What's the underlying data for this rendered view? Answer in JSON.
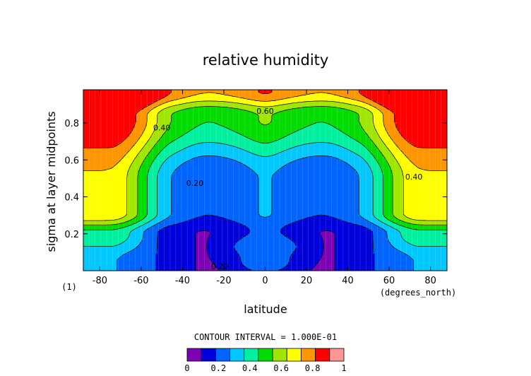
{
  "chart_data": {
    "type": "contour",
    "title": "relative humidity",
    "xlabel": "latitude",
    "x_units": "(degrees_north)",
    "ylabel": "sigma at layer midpoints",
    "panel_label": "(1)",
    "xlim": [
      -88,
      88
    ],
    "ylim": [
      0.0,
      0.98
    ],
    "x_ticks": [
      -80,
      -60,
      -40,
      -20,
      0,
      20,
      40,
      60,
      80
    ],
    "y_ticks": [
      0.2,
      0.4,
      0.6,
      0.8
    ],
    "y_tick_labels": [
      "0.2",
      "0.4",
      "0.6",
      "0.8"
    ],
    "contour_interval_text": "CONTOUR INTERVAL = 1.000E-01",
    "contour_labels": [
      {
        "text": "0.60",
        "x": 0,
        "y": 0.865
      },
      {
        "text": "0.40",
        "x": -50,
        "y": 0.775
      },
      {
        "text": "0.40",
        "x": 72,
        "y": 0.51
      },
      {
        "text": "0.20",
        "x": -34,
        "y": 0.475
      },
      {
        "text": "0.20",
        "x": -22,
        "y": 0.025
      }
    ],
    "levels": [
      0,
      0.1,
      0.2,
      0.3,
      0.4,
      0.5,
      0.6,
      0.7,
      0.8,
      0.9,
      1.0
    ],
    "colorbar_labels": [
      "0",
      "0.2",
      "0.4",
      "0.6",
      "0.8",
      "1"
    ],
    "colors": [
      "#7d00b4",
      "#0000dc",
      "#0064ff",
      "#00c8ff",
      "#00f0a0",
      "#00dc00",
      "#a0e600",
      "#ffff00",
      "#ff9600",
      "#ff0000",
      "#ff9696"
    ],
    "grid_latitudes": [
      -87.9,
      -85.1,
      -82.3,
      -79.5,
      -76.7,
      -73.9,
      -71.1,
      -68.4,
      -65.6,
      -62.8,
      -60.0,
      -57.2,
      -54.4,
      -51.6,
      -48.8,
      -46.0,
      -43.3,
      -40.5,
      -37.7,
      -34.9,
      -32.1,
      -29.3,
      -26.5,
      -23.7,
      -20.9,
      -18.1,
      -15.3,
      -12.6,
      -9.8,
      -7.0,
      -4.2,
      -1.4,
      1.4,
      4.2,
      7.0,
      9.8,
      12.6,
      15.3,
      18.1,
      20.9,
      23.7,
      26.5,
      29.3,
      32.1,
      34.9,
      37.7,
      40.5,
      43.3,
      46.0,
      48.8,
      51.6,
      54.4,
      57.2,
      60.0,
      62.8,
      65.6,
      68.4,
      71.1,
      73.9,
      76.7,
      79.5,
      82.3,
      85.1,
      87.9
    ]
  }
}
